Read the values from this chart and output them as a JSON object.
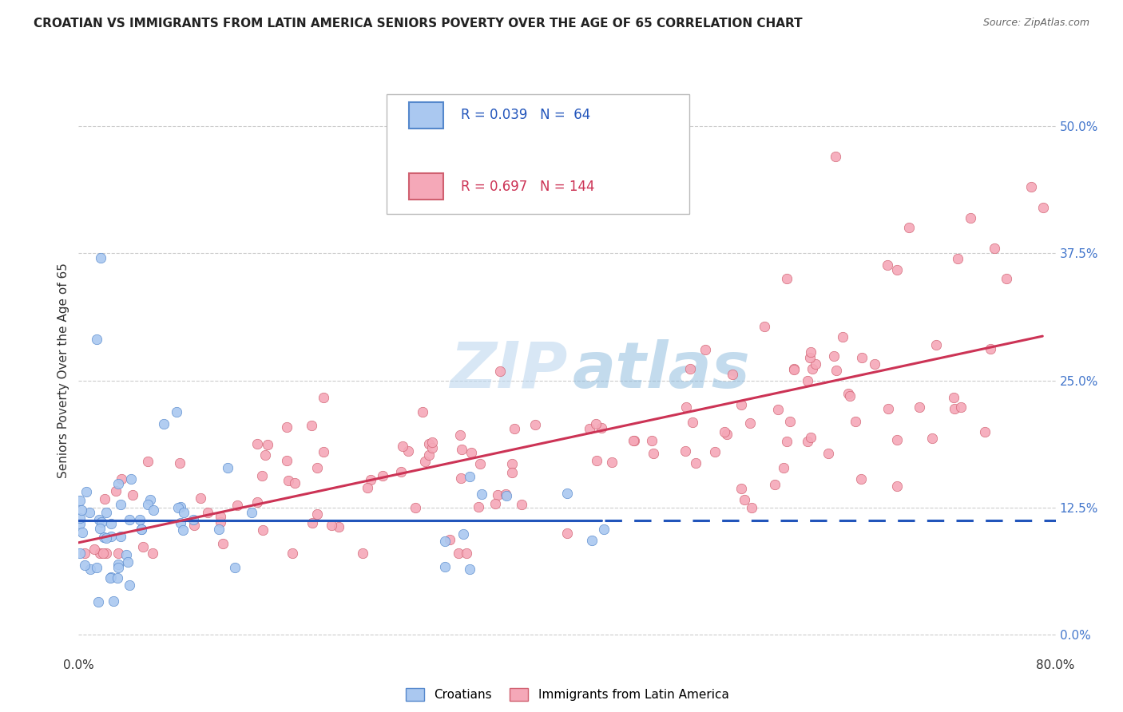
{
  "title": "CROATIAN VS IMMIGRANTS FROM LATIN AMERICA SENIORS POVERTY OVER THE AGE OF 65 CORRELATION CHART",
  "source": "Source: ZipAtlas.com",
  "ylabel": "Seniors Poverty Over the Age of 65",
  "xlim": [
    0.0,
    0.8
  ],
  "ylim": [
    -0.02,
    0.54
  ],
  "yticks": [
    0.0,
    0.125,
    0.25,
    0.375,
    0.5
  ],
  "yticklabels": [
    "0.0%",
    "12.5%",
    "25.0%",
    "37.5%",
    "50.0%"
  ],
  "xticks": [
    0.0,
    0.2,
    0.4,
    0.6,
    0.8
  ],
  "xticklabels": [
    "0.0%",
    "",
    "",
    "",
    "80.0%"
  ],
  "blue_R": 0.039,
  "blue_N": 64,
  "pink_R": 0.697,
  "pink_N": 144,
  "blue_scatter_color": "#aac8f0",
  "blue_edge_color": "#5588cc",
  "pink_scatter_color": "#f5a8b8",
  "pink_edge_color": "#d06070",
  "blue_line_color": "#2255bb",
  "pink_line_color": "#cc3355",
  "legend_blue_label": "Croatians",
  "legend_pink_label": "Immigrants from Latin America",
  "background_color": "#ffffff",
  "grid_color": "#cccccc",
  "tick_color": "#4477cc",
  "title_color": "#222222",
  "source_color": "#666666"
}
